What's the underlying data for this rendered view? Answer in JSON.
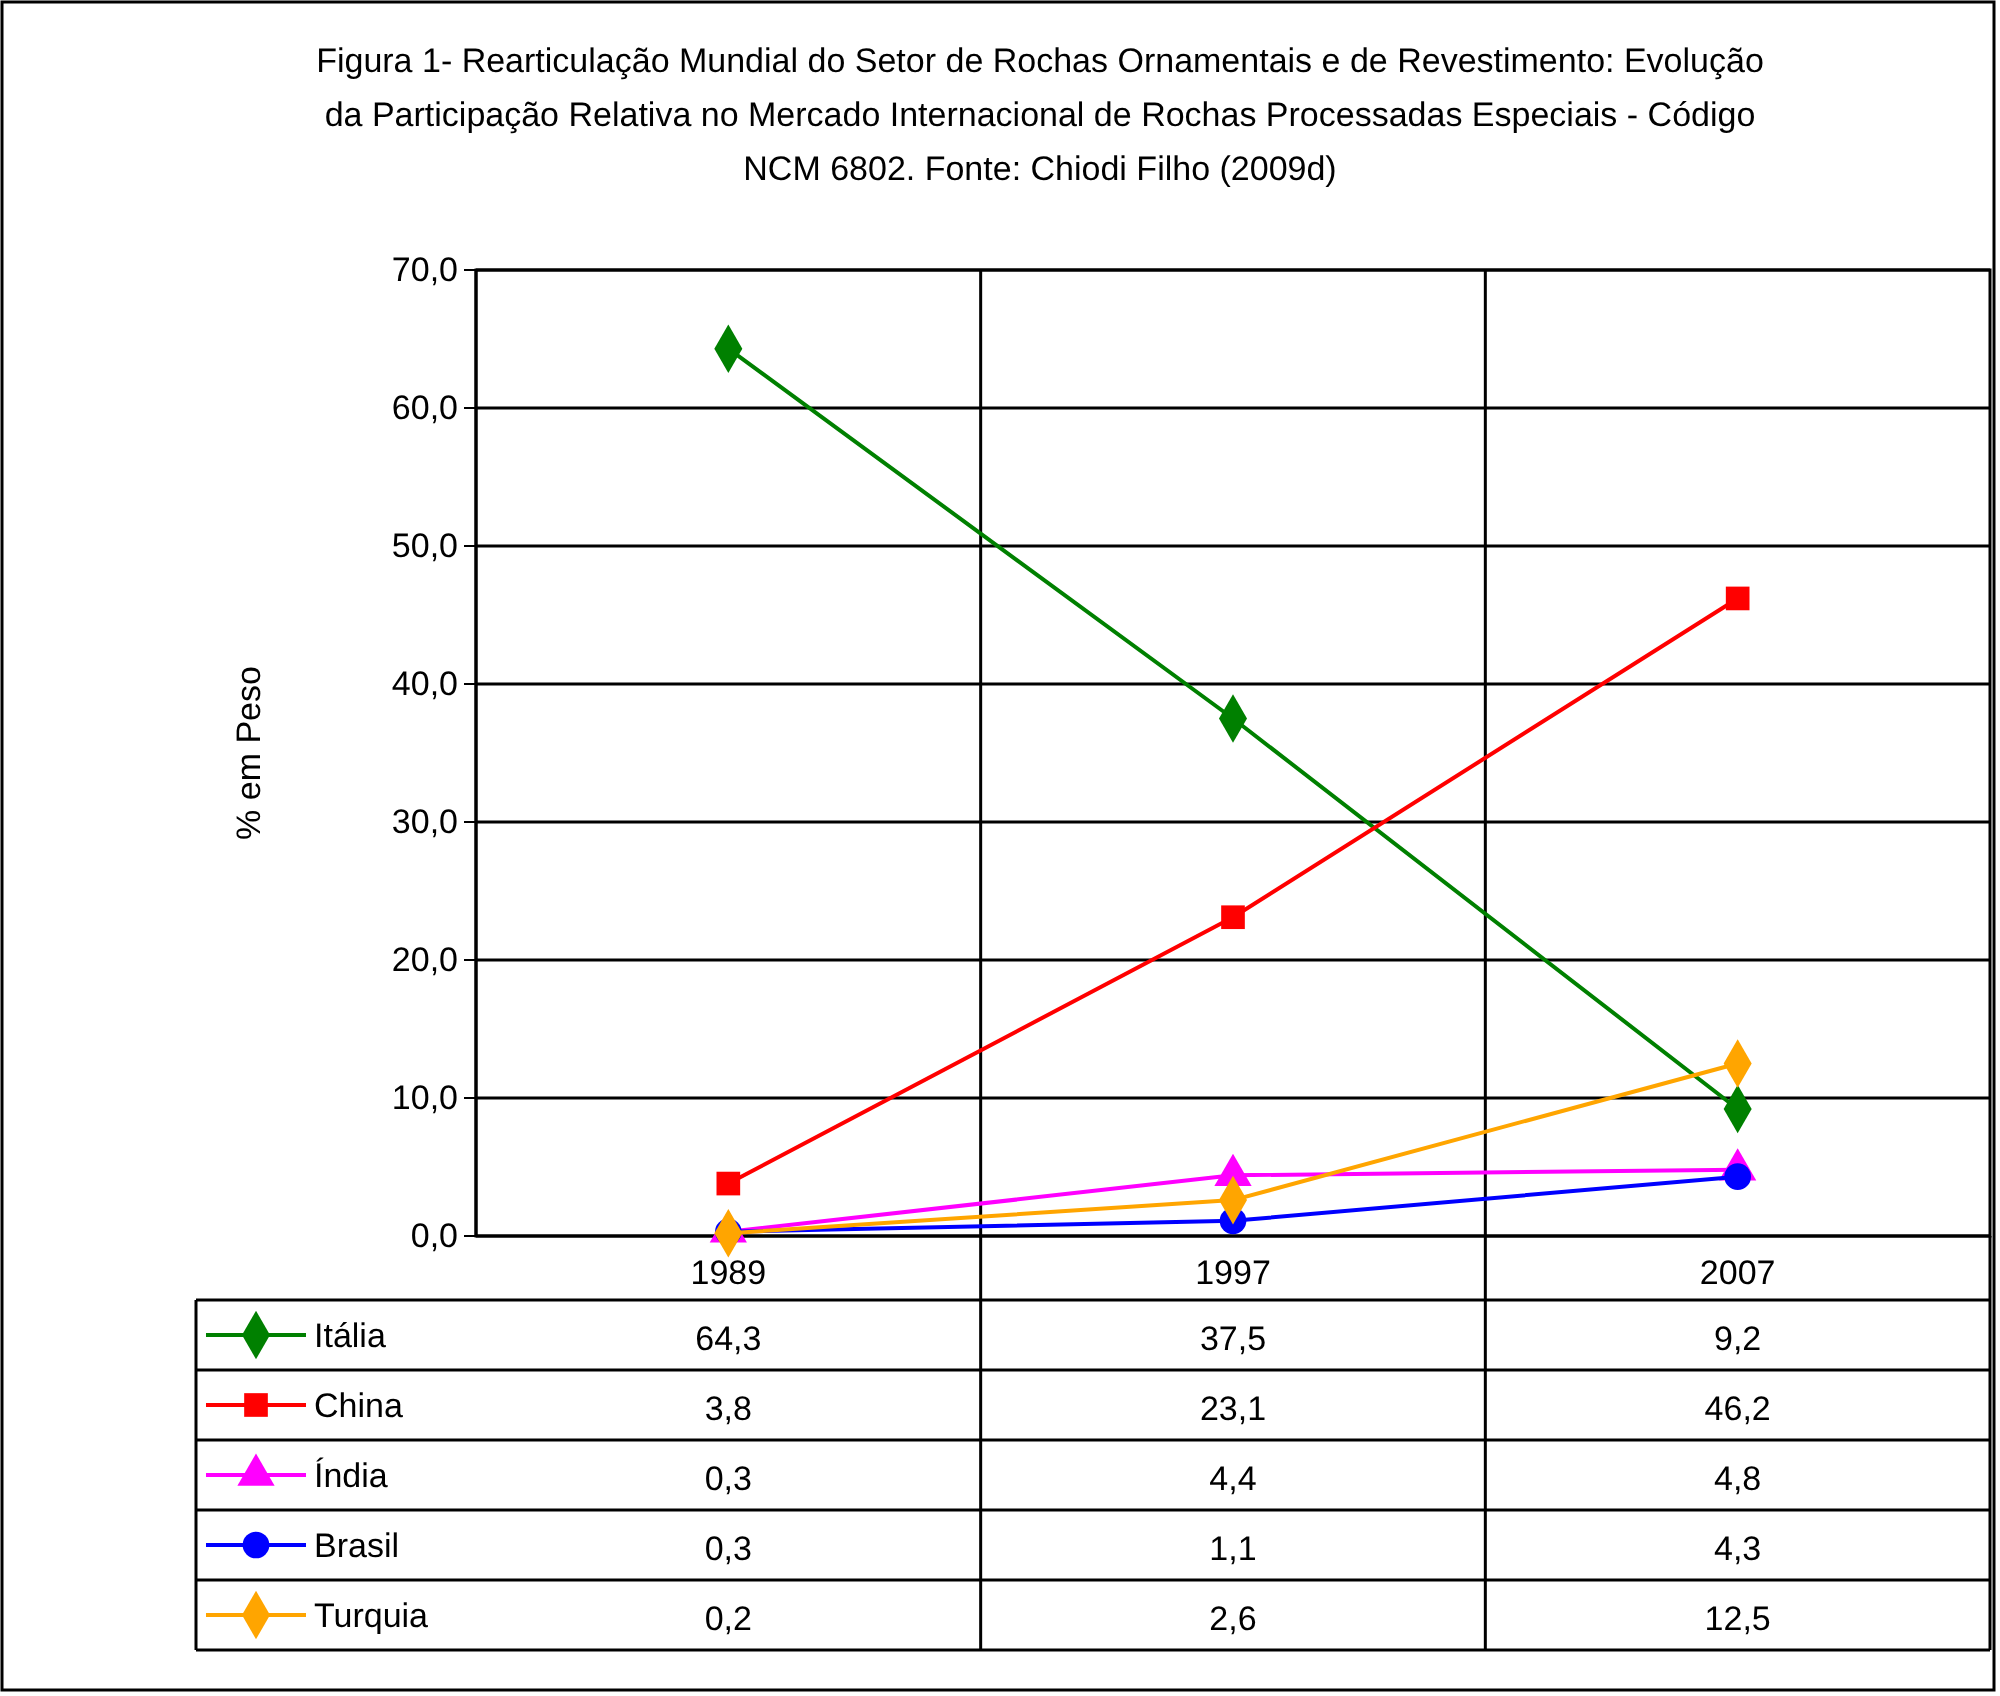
{
  "chart_data": {
    "type": "line",
    "title": "Figura 1- Rearticulação Mundial do Setor de Rochas Ornamentais e de Revestimento: Evolução da Participação Relativa no Mercado Internacional de Rochas Processadas Especiais - Código NCM 6802. Fonte: Chiodi Filho (2009d)",
    "ylabel": "% em Peso",
    "categories": [
      "1989",
      "1997",
      "2007"
    ],
    "series": [
      {
        "name": "Itália",
        "color": "#008000",
        "marker": "diamond",
        "values": [
          64.3,
          37.5,
          9.2
        ],
        "value_labels": [
          "64,3",
          "37,5",
          "9,2"
        ]
      },
      {
        "name": "China",
        "color": "#ff0000",
        "marker": "square",
        "values": [
          3.8,
          23.1,
          46.2
        ],
        "value_labels": [
          "3,8",
          "23,1",
          "46,2"
        ]
      },
      {
        "name": "Índia",
        "color": "#ff00ff",
        "marker": "triangle",
        "values": [
          0.3,
          4.4,
          4.8
        ],
        "value_labels": [
          "0,3",
          "4,4",
          "4,8"
        ]
      },
      {
        "name": "Brasil",
        "color": "#0000ff",
        "marker": "circle",
        "values": [
          0.3,
          1.1,
          4.3
        ],
        "value_labels": [
          "0,3",
          "1,1",
          "4,3"
        ]
      },
      {
        "name": "Turquia",
        "color": "#ffa500",
        "marker": "diamond",
        "values": [
          0.2,
          2.6,
          12.5
        ],
        "value_labels": [
          "0,2",
          "2,6",
          "12,5"
        ]
      }
    ],
    "ylim": [
      0,
      70
    ],
    "yticks": [
      {
        "value": 0,
        "label": "0,0"
      },
      {
        "value": 10,
        "label": "10,0"
      },
      {
        "value": 20,
        "label": "20,0"
      },
      {
        "value": 30,
        "label": "30,0"
      },
      {
        "value": 40,
        "label": "40,0"
      },
      {
        "value": 50,
        "label": "50,0"
      },
      {
        "value": 60,
        "label": "60,0"
      },
      {
        "value": 70,
        "label": "70,0"
      }
    ],
    "grid": "y",
    "legend": "bottom left"
  }
}
